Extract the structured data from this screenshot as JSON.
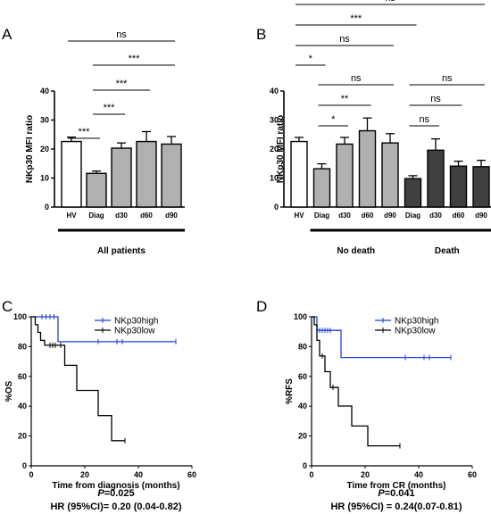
{
  "panel_labels": [
    "A",
    "B",
    "C",
    "D"
  ],
  "colors": {
    "white": "#ffffff",
    "light_gray": "#b0b0b0",
    "dark_gray": "#404040",
    "high": "#1f3fd8",
    "low": "#000000"
  },
  "chart_data": [
    {
      "panel": "A",
      "type": "bar",
      "ylabel": "NKp30 MFI ratio",
      "ylim": [
        0,
        40
      ],
      "yticks": [
        "0",
        "10",
        "20",
        "30",
        "40"
      ],
      "categories": [
        "HV",
        "Diag",
        "d30",
        "d60",
        "d90"
      ],
      "values": [
        22.6,
        11.6,
        20.3,
        22.6,
        21.7
      ],
      "errors": [
        1.5,
        0.8,
        1.8,
        3.4,
        2.6
      ],
      "fills": [
        "white",
        "light_gray",
        "light_gray",
        "light_gray",
        "light_gray"
      ],
      "group_labels": [
        "All patients"
      ],
      "comparisons": [
        {
          "from": 0,
          "to": 4,
          "label": "ns"
        },
        {
          "from": 1,
          "to": 4,
          "label": "***"
        },
        {
          "from": 1,
          "to": 3,
          "label": "***"
        },
        {
          "from": 1,
          "to": 2,
          "label": "***"
        },
        {
          "from": 0,
          "to": 1,
          "label": "***"
        }
      ]
    },
    {
      "panel": "B",
      "type": "bar",
      "ylabel": "NKp30 MFI ratio",
      "ylim": [
        0,
        40
      ],
      "yticks": [
        "0",
        "10",
        "20",
        "30",
        "40"
      ],
      "categories": [
        "HV",
        "Diag",
        "d30",
        "d60",
        "d90",
        "Diag",
        "d30",
        "d60",
        "d90"
      ],
      "values": [
        22.6,
        13.2,
        21.7,
        26.3,
        22.1,
        9.8,
        19.6,
        14.1,
        13.9
      ],
      "errors": [
        1.4,
        1.7,
        2.3,
        4.4,
        3.2,
        1.0,
        3.9,
        1.7,
        2.2
      ],
      "fills": [
        "white",
        "light_gray",
        "light_gray",
        "light_gray",
        "light_gray",
        "dark_gray",
        "dark_gray",
        "dark_gray",
        "dark_gray"
      ],
      "group_labels": [
        "No death",
        "Death"
      ],
      "comparisons": [
        {
          "from": 0,
          "to": 8,
          "label": "ns"
        },
        {
          "from": 0,
          "to": 5,
          "label": "***"
        },
        {
          "from": 0,
          "to": 4,
          "label": "ns"
        },
        {
          "from": 0,
          "to": 1,
          "label": "*"
        },
        {
          "from": 1,
          "to": 4,
          "label": "ns"
        },
        {
          "from": 1,
          "to": 3,
          "label": "**"
        },
        {
          "from": 1,
          "to": 2,
          "label": "*"
        },
        {
          "from": 5,
          "to": 8,
          "label": "ns"
        },
        {
          "from": 5,
          "to": 7,
          "label": "ns"
        },
        {
          "from": 5,
          "to": 6,
          "label": "ns"
        }
      ]
    },
    {
      "panel": "C",
      "type": "line",
      "ylabel": "%OS",
      "xlabel": "Time from diagnosis (months)",
      "xlim": [
        0,
        60
      ],
      "ylim": [
        0,
        100
      ],
      "xticks": [
        "0",
        "20",
        "40",
        "60"
      ],
      "yticks": [
        "0",
        "20",
        "40",
        "60",
        "80",
        "100"
      ],
      "series": [
        {
          "name": "NKp30high",
          "color": "high",
          "steps": [
            [
              0,
              100
            ],
            [
              10,
              100
            ],
            [
              10,
              83.3
            ],
            [
              54,
              83.3
            ]
          ],
          "censored_x": [
            4,
            5.5,
            7,
            8.5,
            25,
            32,
            34,
            54
          ]
        },
        {
          "name": "NKp30low",
          "color": "low",
          "steps": [
            [
              0,
              100
            ],
            [
              1.5,
              100
            ],
            [
              1.5,
              94.7
            ],
            [
              2.5,
              94.7
            ],
            [
              2.5,
              89.5
            ],
            [
              3.5,
              89.5
            ],
            [
              3.5,
              84.2
            ],
            [
              5,
              84.2
            ],
            [
              5,
              80.9
            ],
            [
              12.5,
              80.9
            ],
            [
              12.5,
              67.4
            ],
            [
              17,
              67.4
            ],
            [
              17,
              50.6
            ],
            [
              25,
              50.6
            ],
            [
              25,
              33.7
            ],
            [
              30,
              33.7
            ],
            [
              30,
              16.9
            ],
            [
              35,
              16.9
            ]
          ],
          "censored_x": [
            7,
            8,
            9,
            11,
            35
          ]
        }
      ],
      "p_value": "0.025",
      "hr": "HR (95%CI)= 0.20 (0.04-0.82)"
    },
    {
      "panel": "D",
      "type": "line",
      "ylabel": "%RFS",
      "xlabel": "Time from CR (months)",
      "xlim": [
        0,
        60
      ],
      "ylim": [
        0,
        100
      ],
      "xticks": [
        "0",
        "20",
        "40",
        "60"
      ],
      "yticks": [
        "0",
        "20",
        "40",
        "60",
        "80",
        "100"
      ],
      "series": [
        {
          "name": "NKp30high",
          "color": "high",
          "steps": [
            [
              0,
              100
            ],
            [
              2,
              100
            ],
            [
              2,
              90.9
            ],
            [
              11,
              90.9
            ],
            [
              11,
              72.7
            ],
            [
              52,
              72.7
            ]
          ],
          "censored_x": [
            3,
            4,
            5,
            6,
            7,
            35,
            42,
            44,
            52
          ]
        },
        {
          "name": "NKp30low",
          "color": "low",
          "steps": [
            [
              0,
              100
            ],
            [
              1,
              100
            ],
            [
              1,
              94.7
            ],
            [
              2,
              94.7
            ],
            [
              2,
              84.2
            ],
            [
              3,
              84.2
            ],
            [
              3,
              73.7
            ],
            [
              5,
              73.7
            ],
            [
              5,
              63.2
            ],
            [
              7,
              63.2
            ],
            [
              7,
              52.6
            ],
            [
              10,
              52.6
            ],
            [
              10,
              40.1
            ],
            [
              15,
              40.1
            ],
            [
              15,
              26.7
            ],
            [
              21,
              26.7
            ],
            [
              21,
              13.4
            ],
            [
              33,
              13.4
            ]
          ],
          "censored_x": [
            4,
            8,
            33
          ]
        }
      ],
      "p_value": "0.041",
      "hr": "HR (95%CI) = 0.24(0.07-0.81)"
    }
  ]
}
